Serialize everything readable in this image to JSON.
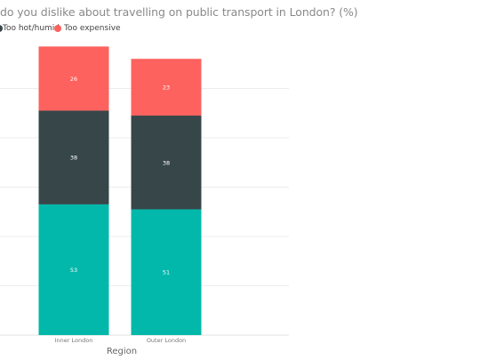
{
  "chart_data": {
    "type": "bar",
    "stacked": true,
    "title": "do you dislike about travelling on public transport in London? (%)",
    "xlabel": "Region",
    "ylabel": "",
    "categories": [
      "Inner London",
      "Outer London"
    ],
    "series": [
      {
        "name": "",
        "values": [
          53,
          51
        ],
        "color": "#01b8aa"
      },
      {
        "name": "Too hot/humid",
        "values": [
          38,
          38
        ],
        "color": "#374649"
      },
      {
        "name": "Too expensive",
        "values": [
          26,
          23
        ],
        "color": "#fd625e"
      }
    ],
    "ylim": [
      0,
      120
    ],
    "grid": true,
    "legend_position": "top-left"
  }
}
